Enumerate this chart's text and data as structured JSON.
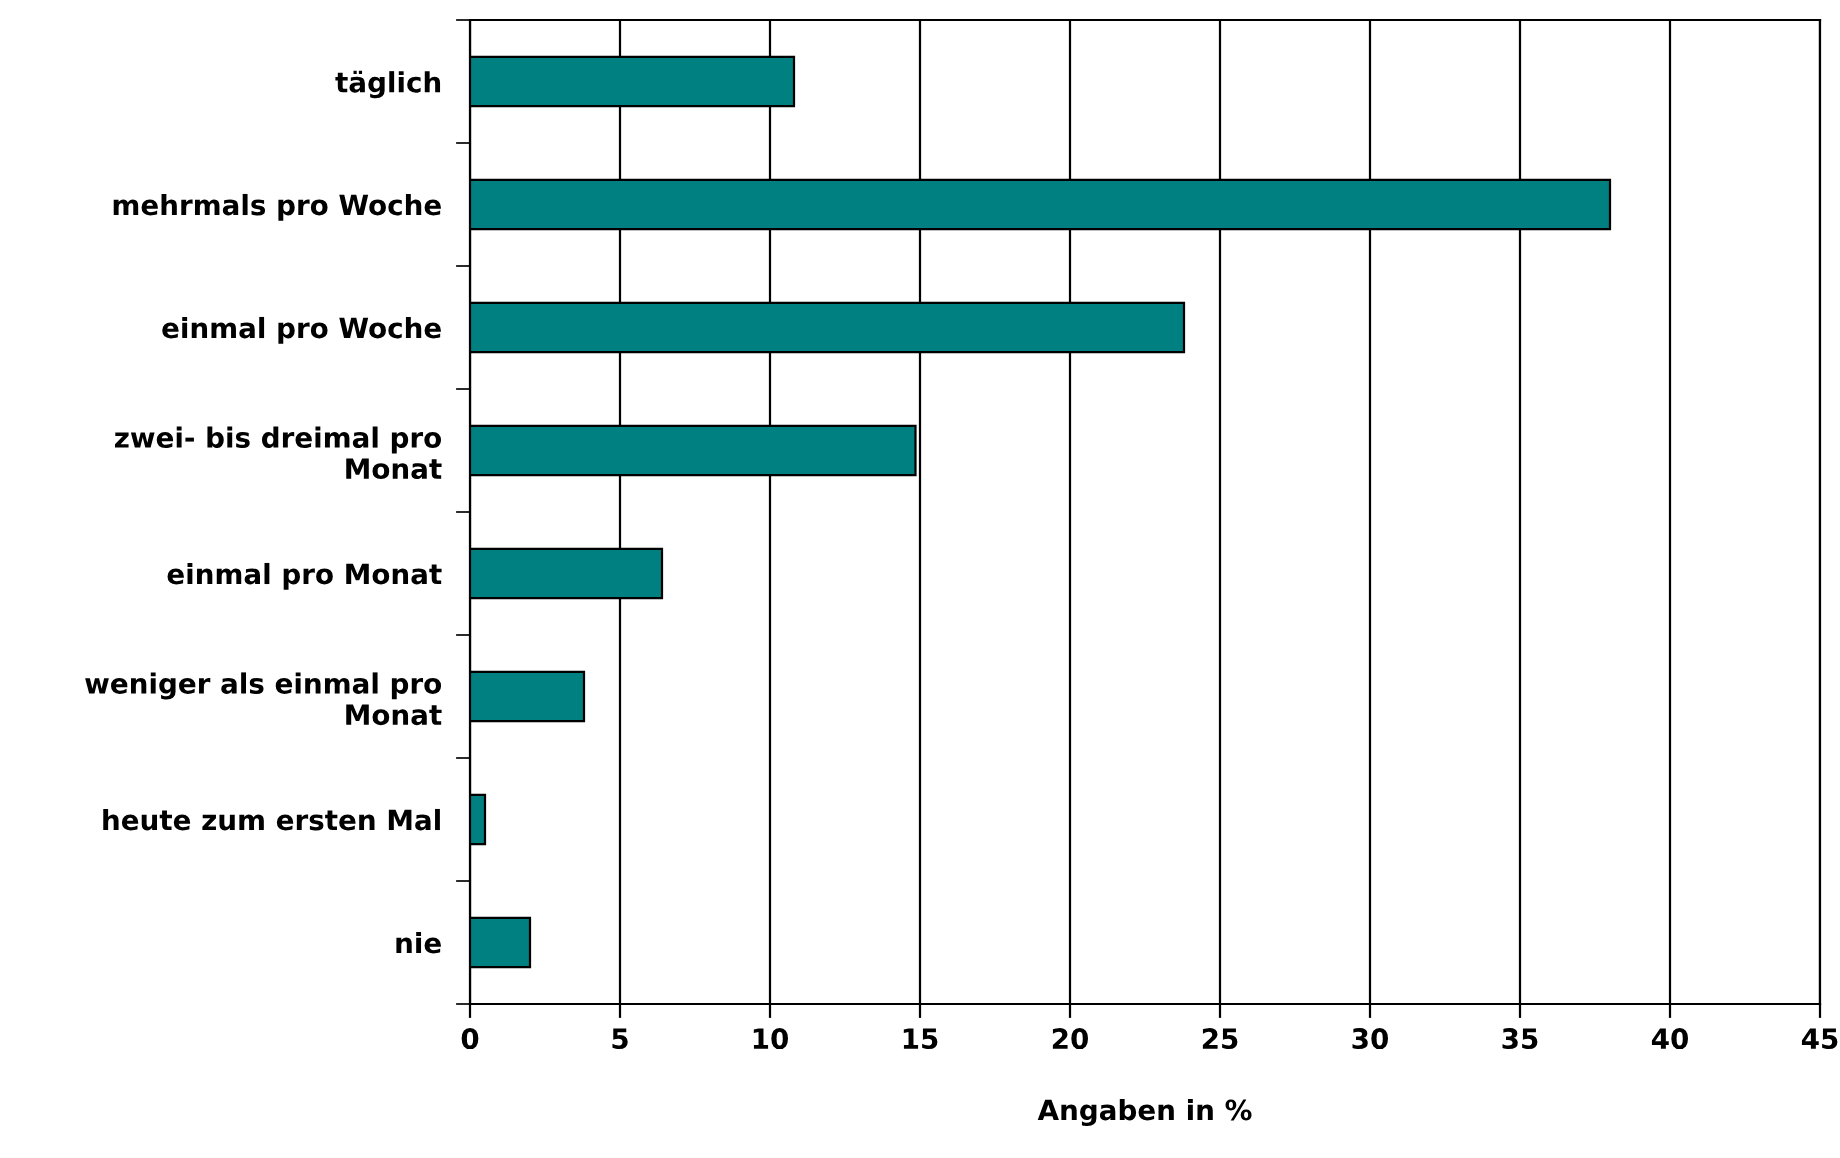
{
  "chart_data": {
    "type": "bar",
    "orientation": "horizontal",
    "xlabel": "Angaben in %",
    "categories": [
      "täglich",
      "mehrmals pro Woche",
      "einmal pro Woche",
      "zwei- bis dreimal pro Monat",
      "einmal pro Monat",
      "weniger als einmal pro Monat",
      "heute zum ersten Mal",
      "nie"
    ],
    "values": [
      10.8,
      38.0,
      23.8,
      14.85,
      6.4,
      3.8,
      0.5,
      2.0
    ],
    "color": "#008080",
    "xlim": [
      0,
      45
    ],
    "xticks": [
      0,
      5,
      10,
      15,
      20,
      25,
      30,
      35,
      40,
      45
    ],
    "grid": "x"
  }
}
